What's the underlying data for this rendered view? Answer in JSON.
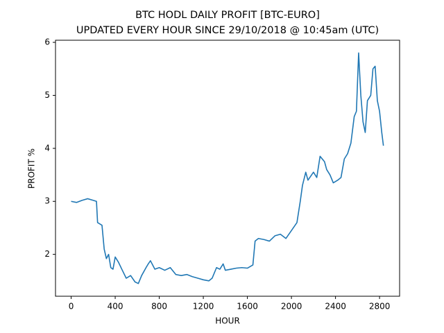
{
  "chart_data": {
    "type": "line",
    "title": "BTC HODL DAILY PROFIT [BTC-EURO]",
    "subtitle": "UPDATED EVERY HOUR SINCE 29/10/2018 @ 10:45am (UTC)",
    "xlabel": "HOUR",
    "ylabel": "PROFIT %",
    "color": "#1f77b4",
    "x": [
      0,
      50,
      100,
      150,
      200,
      230,
      240,
      280,
      300,
      320,
      340,
      360,
      380,
      400,
      430,
      460,
      500,
      540,
      580,
      610,
      640,
      680,
      700,
      720,
      760,
      800,
      850,
      900,
      950,
      1000,
      1050,
      1100,
      1150,
      1200,
      1250,
      1280,
      1320,
      1350,
      1380,
      1400,
      1450,
      1500,
      1550,
      1600,
      1650,
      1670,
      1700,
      1750,
      1800,
      1850,
      1900,
      1950,
      2000,
      2050,
      2080,
      2100,
      2130,
      2150,
      2200,
      2230,
      2260,
      2300,
      2320,
      2350,
      2380,
      2420,
      2450,
      2480,
      2510,
      2540,
      2570,
      2590,
      2610,
      2630,
      2650,
      2670,
      2690,
      2720,
      2740,
      2760,
      2780,
      2800,
      2820,
      2835
    ],
    "values": [
      3.0,
      2.98,
      3.02,
      3.05,
      3.02,
      3.0,
      2.6,
      2.55,
      2.1,
      1.92,
      2.0,
      1.75,
      1.72,
      1.95,
      1.85,
      1.72,
      1.55,
      1.6,
      1.48,
      1.45,
      1.6,
      1.75,
      1.82,
      1.88,
      1.72,
      1.75,
      1.7,
      1.75,
      1.62,
      1.6,
      1.62,
      1.58,
      1.55,
      1.52,
      1.5,
      1.55,
      1.75,
      1.72,
      1.82,
      1.7,
      1.72,
      1.74,
      1.75,
      1.74,
      1.8,
      2.25,
      2.3,
      2.28,
      2.25,
      2.35,
      2.38,
      2.3,
      2.45,
      2.6,
      3.0,
      3.3,
      3.55,
      3.4,
      3.55,
      3.45,
      3.85,
      3.75,
      3.6,
      3.5,
      3.35,
      3.4,
      3.45,
      3.8,
      3.9,
      4.1,
      4.6,
      4.7,
      5.8,
      5.0,
      4.5,
      4.3,
      4.9,
      5.0,
      5.5,
      5.55,
      4.9,
      4.7,
      4.3,
      4.05
    ],
    "xlim": [
      -142,
      2982
    ],
    "ylim": [
      1.21,
      6.04
    ],
    "xticks": [
      0,
      400,
      800,
      1200,
      1600,
      2000,
      2400,
      2800
    ],
    "yticks": [
      2,
      3,
      4,
      5,
      6
    ]
  }
}
